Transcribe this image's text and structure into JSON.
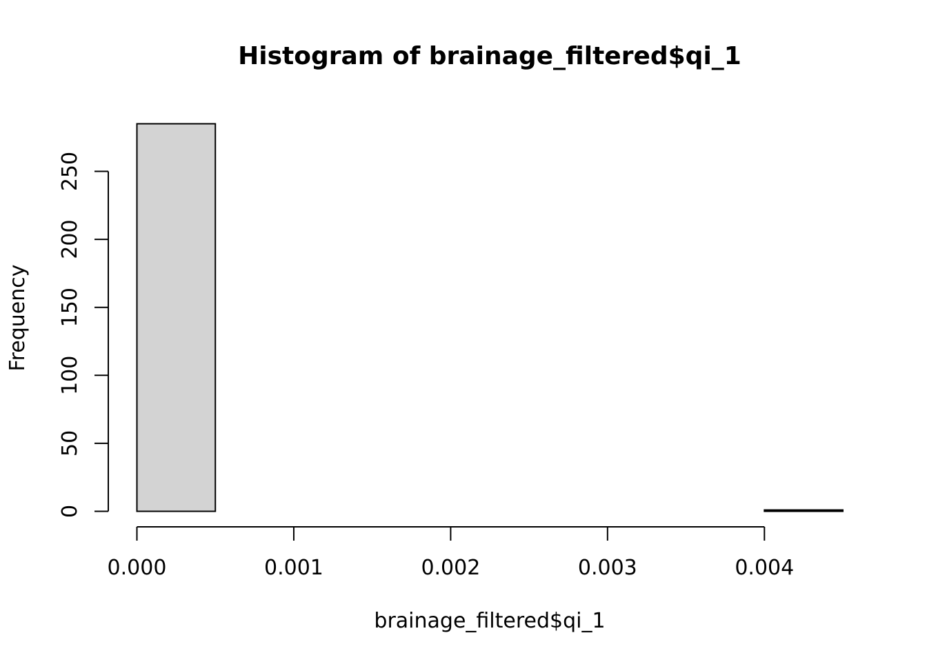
{
  "chart_data": {
    "type": "bar",
    "subtype": "histogram",
    "title": "Histogram of brainage_filtered$qi_1",
    "xlabel": "brainage_filtered$qi_1",
    "ylabel": "Frequency",
    "bins": [
      {
        "x0": 0.0,
        "x1": 0.0005,
        "count": 285
      },
      {
        "x0": 0.0005,
        "x1": 0.001,
        "count": 0
      },
      {
        "x0": 0.001,
        "x1": 0.0015,
        "count": 0
      },
      {
        "x0": 0.0015,
        "x1": 0.002,
        "count": 0
      },
      {
        "x0": 0.002,
        "x1": 0.0025,
        "count": 0
      },
      {
        "x0": 0.0025,
        "x1": 0.003,
        "count": 0
      },
      {
        "x0": 0.003,
        "x1": 0.0035,
        "count": 0
      },
      {
        "x0": 0.0035,
        "x1": 0.004,
        "count": 0
      },
      {
        "x0": 0.004,
        "x1": 0.0045,
        "count": 1
      }
    ],
    "xticks": [
      0.0,
      0.001,
      0.002,
      0.003,
      0.004
    ],
    "xtick_labels": [
      "0.000",
      "0.001",
      "0.002",
      "0.003",
      "0.004"
    ],
    "yticks": [
      0,
      50,
      100,
      150,
      200,
      250
    ],
    "ytick_labels": [
      "0",
      "50",
      "100",
      "150",
      "200",
      "250"
    ],
    "xlim": [
      0.0,
      0.0045
    ],
    "ylim": [
      0,
      285
    ],
    "bar_fill": "#d3d3d3",
    "bar_stroke": "#000000",
    "grid": false,
    "legend": "none"
  }
}
